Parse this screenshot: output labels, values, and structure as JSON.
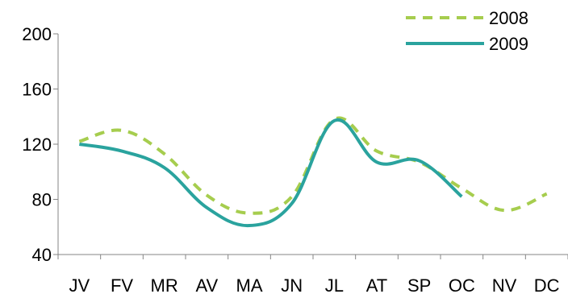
{
  "chart_data": {
    "type": "line",
    "categories": [
      "JV",
      "FV",
      "MR",
      "AV",
      "MA",
      "JN",
      "JL",
      "AT",
      "SP",
      "OC",
      "NV",
      "DC"
    ],
    "ylim": [
      40,
      200
    ],
    "yticks": [
      40,
      80,
      120,
      160,
      200
    ],
    "grid": false,
    "legend_position": "top-right",
    "series": [
      {
        "name": "2008",
        "color": "#a6cd4e",
        "dash": true,
        "values": [
          122,
          130,
          113,
          83,
          70,
          82,
          138,
          115,
          107,
          88,
          72,
          84
        ]
      },
      {
        "name": "2009",
        "color": "#2aa39e",
        "dash": false,
        "values": [
          120,
          115,
          103,
          74,
          61,
          77,
          137,
          107,
          108,
          82,
          null,
          null
        ]
      }
    ]
  }
}
